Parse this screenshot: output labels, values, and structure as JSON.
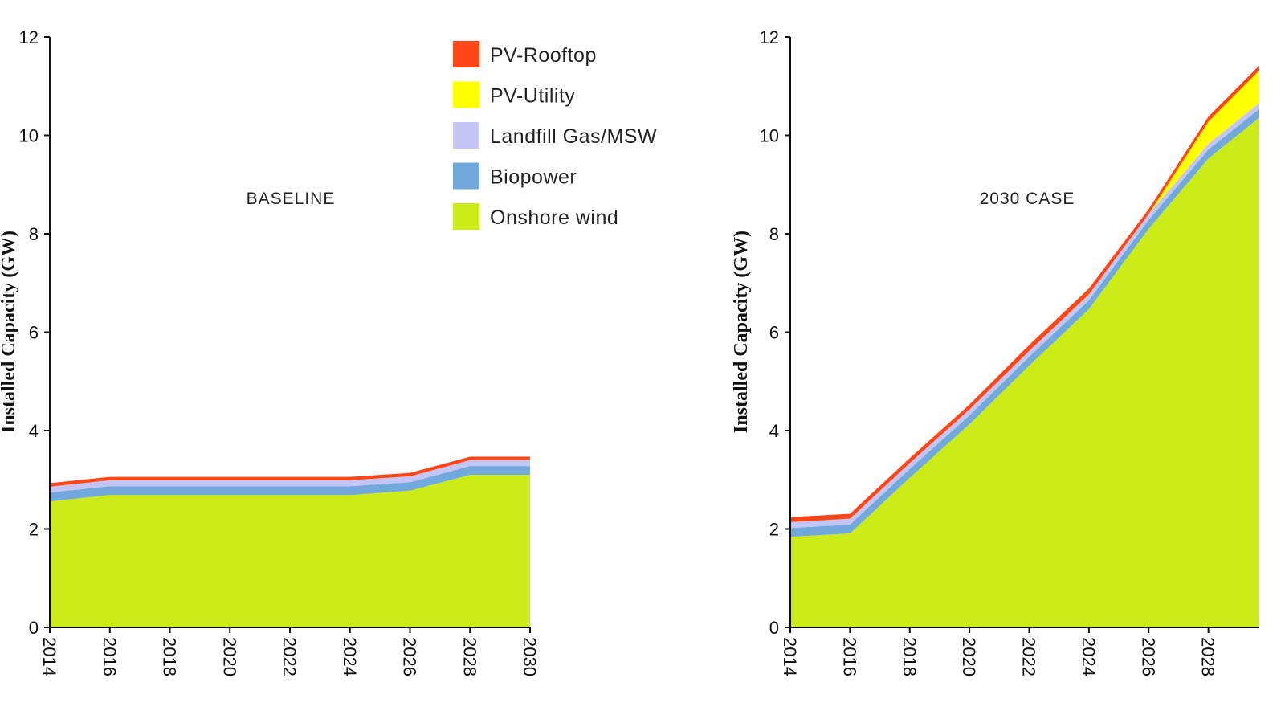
{
  "chart_data": [
    {
      "type": "area",
      "stacked": true,
      "title": "BASELINE",
      "xlabel": "",
      "ylabel": "Installed Capacity (GW)",
      "xlim": [
        2014,
        2030
      ],
      "ylim": [
        0,
        12
      ],
      "yticks": [
        "0",
        "2",
        "4",
        "6",
        "8",
        "10",
        "12"
      ],
      "xticks": [
        "2014",
        "2016",
        "2018",
        "2020",
        "2022",
        "2024",
        "2026",
        "2028",
        "2030"
      ],
      "grid": false,
      "x": [
        2014,
        2016,
        2018,
        2020,
        2022,
        2024,
        2026,
        2028,
        2030
      ],
      "series": [
        {
          "name": "Onshore wind",
          "color": "#cbec18",
          "values": [
            2.56,
            2.69,
            2.69,
            2.69,
            2.69,
            2.69,
            2.78,
            3.1,
            3.1
          ]
        },
        {
          "name": "Biopower",
          "color": "#72a9dc",
          "values": [
            0.18,
            0.18,
            0.18,
            0.18,
            0.18,
            0.18,
            0.17,
            0.18,
            0.18
          ]
        },
        {
          "name": "Landfill Gas/MSW",
          "color": "#c3c5f5",
          "values": [
            0.12,
            0.12,
            0.12,
            0.12,
            0.12,
            0.12,
            0.12,
            0.12,
            0.12
          ]
        },
        {
          "name": "PV-Utility",
          "color": "#ffff00",
          "values": [
            0,
            0,
            0,
            0,
            0,
            0,
            0,
            0,
            0
          ]
        },
        {
          "name": "PV-Rooftop",
          "color": "#ff4616",
          "values": [
            0.07,
            0.07,
            0.07,
            0.07,
            0.07,
            0.07,
            0.07,
            0.07,
            0.07
          ]
        }
      ],
      "legend": {
        "placement": "top-right",
        "entries": [
          "PV-Rooftop",
          "PV-Utility",
          "Landfill Gas/MSW",
          "Biopower",
          "Onshore wind"
        ]
      }
    },
    {
      "type": "area",
      "stacked": true,
      "title": "2030 CASE",
      "xlabel": "",
      "ylabel": "Installed Capacity (GW)",
      "xlim": [
        2014,
        2030
      ],
      "ylim": [
        0,
        12
      ],
      "yticks": [
        "0",
        "2",
        "4",
        "6",
        "8",
        "10",
        "12"
      ],
      "xticks": [
        "2014",
        "2016",
        "2018",
        "2020",
        "2022",
        "2024",
        "2026",
        "2028"
      ],
      "grid": false,
      "x": [
        2014,
        2016,
        2018,
        2020,
        2022,
        2024,
        2026,
        2028,
        2030
      ],
      "series": [
        {
          "name": "Onshore wind",
          "color": "#cbec18",
          "values": [
            1.84,
            1.91,
            3.04,
            4.13,
            5.32,
            6.47,
            8.1,
            9.53,
            10.5
          ]
        },
        {
          "name": "Biopower",
          "color": "#72a9dc",
          "values": [
            0.18,
            0.18,
            0.18,
            0.18,
            0.18,
            0.18,
            0.18,
            0.18,
            0.18
          ]
        },
        {
          "name": "Landfill Gas/MSW",
          "color": "#c3c5f5",
          "values": [
            0.12,
            0.12,
            0.12,
            0.12,
            0.12,
            0.12,
            0.12,
            0.12,
            0.12
          ]
        },
        {
          "name": "PV-Utility",
          "color": "#ffff00",
          "values": [
            0,
            0,
            0,
            0,
            0,
            0,
            0,
            0.45,
            0.7
          ]
        },
        {
          "name": "PV-Rooftop",
          "color": "#ff4616",
          "values": [
            0.1,
            0.1,
            0.1,
            0.1,
            0.12,
            0.12,
            0.1,
            0.1,
            0.1
          ]
        }
      ]
    }
  ]
}
